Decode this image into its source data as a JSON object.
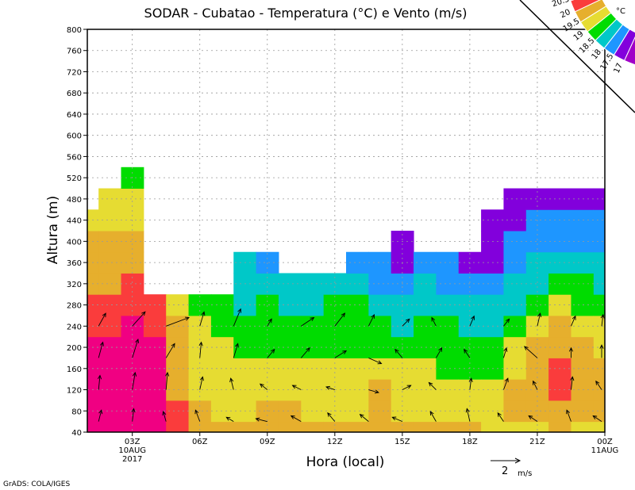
{
  "chart_data": {
    "type": "heatmap",
    "title": "SODAR - Cubatao - Temperatura (°C) e Vento (m/s)",
    "xlabel": "Hora (local)",
    "ylabel": "Altura (m)",
    "ylim": [
      40,
      800
    ],
    "yticks": [
      40,
      80,
      120,
      160,
      200,
      240,
      280,
      320,
      360,
      400,
      440,
      480,
      520,
      560,
      600,
      640,
      680,
      720,
      760,
      800
    ],
    "xlim_hours": [
      1,
      24
    ],
    "xticks": [
      {
        "hour": 3,
        "label": "03Z",
        "sub1": "10AUG",
        "sub2": "2017"
      },
      {
        "hour": 6,
        "label": "06Z"
      },
      {
        "hour": 9,
        "label": "09Z"
      },
      {
        "hour": 12,
        "label": "12Z"
      },
      {
        "hour": 15,
        "label": "15Z"
      },
      {
        "hour": 18,
        "label": "18Z"
      },
      {
        "hour": 21,
        "label": "21Z"
      },
      {
        "hour": 24,
        "label": "00Z",
        "sub1": "11AUG"
      }
    ],
    "grid": true,
    "levels_m": [
      40,
      80,
      120,
      160,
      200,
      240,
      280,
      320,
      360,
      400,
      440,
      480,
      520
    ],
    "hours": [
      1,
      2,
      3,
      4,
      5,
      6,
      7,
      8,
      9,
      10,
      11,
      12,
      13,
      14,
      15,
      16,
      17,
      18,
      19,
      20,
      21,
      22,
      23,
      24
    ],
    "temperature": [
      [
        20.7,
        20.7,
        20.7,
        20.7,
        20.6,
        20.3,
        20.2,
        19.8,
        19.7,
        19.6,
        19.2,
        null,
        null
      ],
      [
        20.7,
        20.7,
        20.7,
        20.7,
        20.6,
        20.3,
        20.2,
        19.8,
        19.7,
        19.6,
        19.2,
        19.1,
        null
      ],
      [
        20.7,
        20.7,
        20.7,
        20.7,
        20.7,
        20.7,
        20.3,
        20.1,
        19.7,
        19.6,
        19.2,
        19.1,
        18.7
      ],
      [
        20.7,
        20.7,
        20.7,
        20.7,
        20.6,
        20.3,
        20.1,
        null,
        null,
        null,
        null,
        null,
        null
      ],
      [
        20.2,
        20.1,
        19.8,
        19.8,
        19.7,
        19.6,
        19.2,
        null,
        null,
        null,
        null,
        null,
        null
      ],
      [
        19.6,
        19.6,
        19.4,
        19.2,
        19.1,
        19.0,
        18.7,
        null,
        null,
        null,
        null,
        null,
        null
      ],
      [
        19.6,
        19.3,
        19.1,
        19.0,
        19.0,
        18.7,
        18.6,
        null,
        null,
        null,
        null,
        null,
        null
      ],
      [
        19.6,
        19.3,
        19.0,
        19.0,
        18.9,
        18.7,
        18.4,
        18.3,
        18.0,
        null,
        null,
        null,
        null
      ],
      [
        19.7,
        19.6,
        19.2,
        19.0,
        18.9,
        18.7,
        18.5,
        18.3,
        17.9,
        null,
        null,
        null,
        null
      ],
      [
        19.7,
        19.5,
        19.2,
        19.0,
        18.9,
        18.8,
        18.4,
        18.3,
        null,
        null,
        null,
        null,
        null
      ],
      [
        19.6,
        19.3,
        19.1,
        19.0,
        18.9,
        18.8,
        18.4,
        18.2,
        null,
        null,
        null,
        null,
        null
      ],
      [
        19.6,
        19.4,
        19.1,
        19.0,
        18.9,
        18.8,
        18.5,
        18.2,
        null,
        null,
        null,
        null,
        null
      ],
      [
        19.6,
        19.4,
        19.2,
        19.0,
        18.9,
        18.8,
        18.7,
        18.4,
        17.9,
        null,
        null,
        null,
        null
      ],
      [
        19.7,
        19.6,
        19.5,
        19.0,
        18.9,
        18.6,
        18.3,
        17.9,
        17.6,
        null,
        null,
        null,
        null
      ],
      [
        19.6,
        19.4,
        19.1,
        19.0,
        18.7,
        18.4,
        18.2,
        17.8,
        17.3,
        17.3,
        null,
        null,
        null
      ],
      [
        19.6,
        19.4,
        19.1,
        19.0,
        18.8,
        18.6,
        18.3,
        18.1,
        17.8,
        null,
        null,
        null,
        null
      ],
      [
        19.6,
        19.3,
        19.1,
        18.9,
        18.7,
        18.5,
        18.2,
        17.9,
        17.7,
        null,
        null,
        null,
        null
      ],
      [
        19.6,
        19.3,
        19.0,
        18.7,
        18.6,
        18.4,
        18.2,
        17.9,
        17.4,
        null,
        null,
        null,
        null
      ],
      [
        19.4,
        19.2,
        19.0,
        18.8,
        18.6,
        18.4,
        18.2,
        17.9,
        17.4,
        17.2,
        17.2,
        null,
        null
      ],
      [
        19.4,
        19.5,
        19.6,
        19.3,
        19.0,
        18.7,
        18.4,
        18.1,
        17.9,
        17.7,
        17.4,
        17.2,
        null
      ],
      [
        19.4,
        19.7,
        19.8,
        19.7,
        19.5,
        19.1,
        18.8,
        18.4,
        18.1,
        17.8,
        17.6,
        17.2,
        null
      ],
      [
        19.5,
        19.8,
        20.0,
        20.1,
        19.7,
        19.5,
        19.1,
        18.7,
        18.3,
        17.9,
        17.7,
        17.2,
        null
      ],
      [
        19.4,
        19.7,
        19.8,
        19.6,
        19.5,
        19.2,
        18.8,
        18.5,
        18.2,
        17.9,
        17.6,
        17.3,
        null
      ],
      [
        19.3,
        19.5,
        19.6,
        19.5,
        19.3,
        19.1,
        18.8,
        18.4,
        18.2,
        17.9,
        17.7,
        17.3,
        null
      ]
    ],
    "wind_levels_m": [
      60,
      120,
      180,
      240
    ],
    "wind_hours": [
      1.5,
      3,
      4.5,
      6,
      7.5,
      9,
      10.5,
      12,
      13.5,
      15,
      16.5,
      18,
      19.5,
      21,
      22.5,
      24
    ],
    "wind_uv": [
      [
        [
          0.2,
          0.8
        ],
        [
          0.1,
          1.0
        ],
        [
          0.3,
          1.1
        ],
        [
          0.5,
          0.9
        ]
      ],
      [
        [
          0.1,
          0.9
        ],
        [
          0.2,
          1.2
        ],
        [
          0.4,
          1.3
        ],
        [
          0.9,
          1.0
        ]
      ],
      [
        [
          -0.2,
          0.7
        ],
        [
          0.1,
          1.2
        ],
        [
          0.6,
          1.0
        ],
        [
          1.6,
          0.6
        ]
      ],
      [
        [
          -0.3,
          0.8
        ],
        [
          0.2,
          0.9
        ],
        [
          0.1,
          1.1
        ],
        [
          0.3,
          1.0
        ]
      ],
      [
        [
          -0.5,
          0.3
        ],
        [
          -0.2,
          0.8
        ],
        [
          0.3,
          1.0
        ],
        [
          0.5,
          1.2
        ]
      ],
      [
        [
          -0.8,
          0.2
        ],
        [
          -0.5,
          0.4
        ],
        [
          0.5,
          0.6
        ],
        [
          0.3,
          0.5
        ]
      ],
      [
        [
          -0.7,
          0.4
        ],
        [
          -0.6,
          0.3
        ],
        [
          0.6,
          0.7
        ],
        [
          0.9,
          0.6
        ]
      ],
      [
        [
          -0.5,
          0.6
        ],
        [
          -0.6,
          0.2
        ],
        [
          0.8,
          0.5
        ],
        [
          0.7,
          0.9
        ]
      ],
      [
        [
          -0.6,
          0.5
        ],
        [
          0.7,
          -0.2
        ],
        [
          0.9,
          -0.4
        ],
        [
          0.4,
          0.8
        ]
      ],
      [
        [
          -0.7,
          0.3
        ],
        [
          0.6,
          0.3
        ],
        [
          -0.5,
          0.6
        ],
        [
          0.5,
          0.5
        ]
      ],
      [
        [
          -0.4,
          0.7
        ],
        [
          -0.5,
          0.5
        ],
        [
          0.4,
          0.7
        ],
        [
          -0.3,
          0.6
        ]
      ],
      [
        [
          -0.2,
          0.9
        ],
        [
          0.1,
          0.8
        ],
        [
          -0.4,
          0.6
        ],
        [
          0.3,
          0.7
        ]
      ],
      [
        [
          -0.4,
          0.6
        ],
        [
          0.3,
          0.8
        ],
        [
          0.2,
          0.7
        ],
        [
          0.4,
          0.5
        ]
      ],
      [
        [
          -0.6,
          0.4
        ],
        [
          -0.3,
          0.6
        ],
        [
          -0.9,
          0.8
        ],
        [
          0.2,
          0.9
        ]
      ],
      [
        [
          -0.3,
          0.8
        ],
        [
          0.1,
          0.9
        ],
        [
          0.0,
          0.7
        ],
        [
          0.3,
          0.7
        ]
      ],
      [
        [
          -0.6,
          0.4
        ],
        [
          -0.4,
          0.6
        ],
        [
          0.0,
          0.9
        ],
        [
          0.1,
          0.8
        ]
      ]
    ],
    "wind_reference": {
      "value": 2,
      "label": "2",
      "unit": "m/s"
    },
    "legend": {
      "unit": "°C",
      "thresholds": [
        "17",
        "17.5",
        "18",
        "18.5",
        "19",
        "19.5",
        "20",
        "20.5"
      ],
      "placement": "top-right"
    },
    "colors": [
      "#a000c8",
      "#8200dc",
      "#1e96ff",
      "#00c8c8",
      "#00dc00",
      "#e6dc32",
      "#e6af2d",
      "#fa3c3c",
      "#f00082"
    ]
  },
  "footer": {
    "credit": "GrADS: COLA/IGES"
  }
}
